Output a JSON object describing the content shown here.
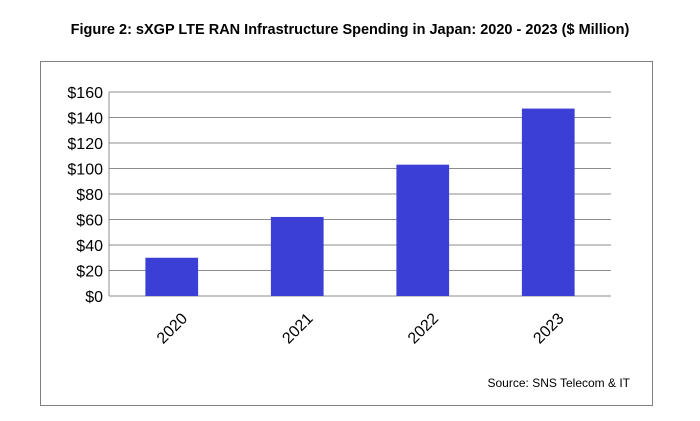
{
  "title": "Figure 2: sXGP LTE RAN Infrastructure Spending in Japan: 2020 - 2023 ($ Million)",
  "source": "Source: SNS Telecom & IT",
  "colors": {
    "bar": "#3c3fd6",
    "grid": "#8c8c8c",
    "axis": "#8c8c8c",
    "frame": "#7f7f7f"
  },
  "chart_data": {
    "type": "bar",
    "title": "Figure 2: sXGP LTE RAN Infrastructure Spending in Japan: 2020 - 2023 ($ Million)",
    "categories": [
      "2020",
      "2021",
      "2022",
      "2023"
    ],
    "values": [
      30,
      62,
      103,
      147
    ],
    "ylim": [
      0,
      160
    ],
    "yticks": [
      0,
      20,
      40,
      60,
      80,
      100,
      120,
      140,
      160
    ],
    "ytick_labels": [
      "$0",
      "$20",
      "$40",
      "$60",
      "$80",
      "$100",
      "$120",
      "$140",
      "$160"
    ],
    "xlabel": "",
    "ylabel": "",
    "grid": true,
    "legend": "none",
    "xtick_rotation": "diagonal"
  }
}
